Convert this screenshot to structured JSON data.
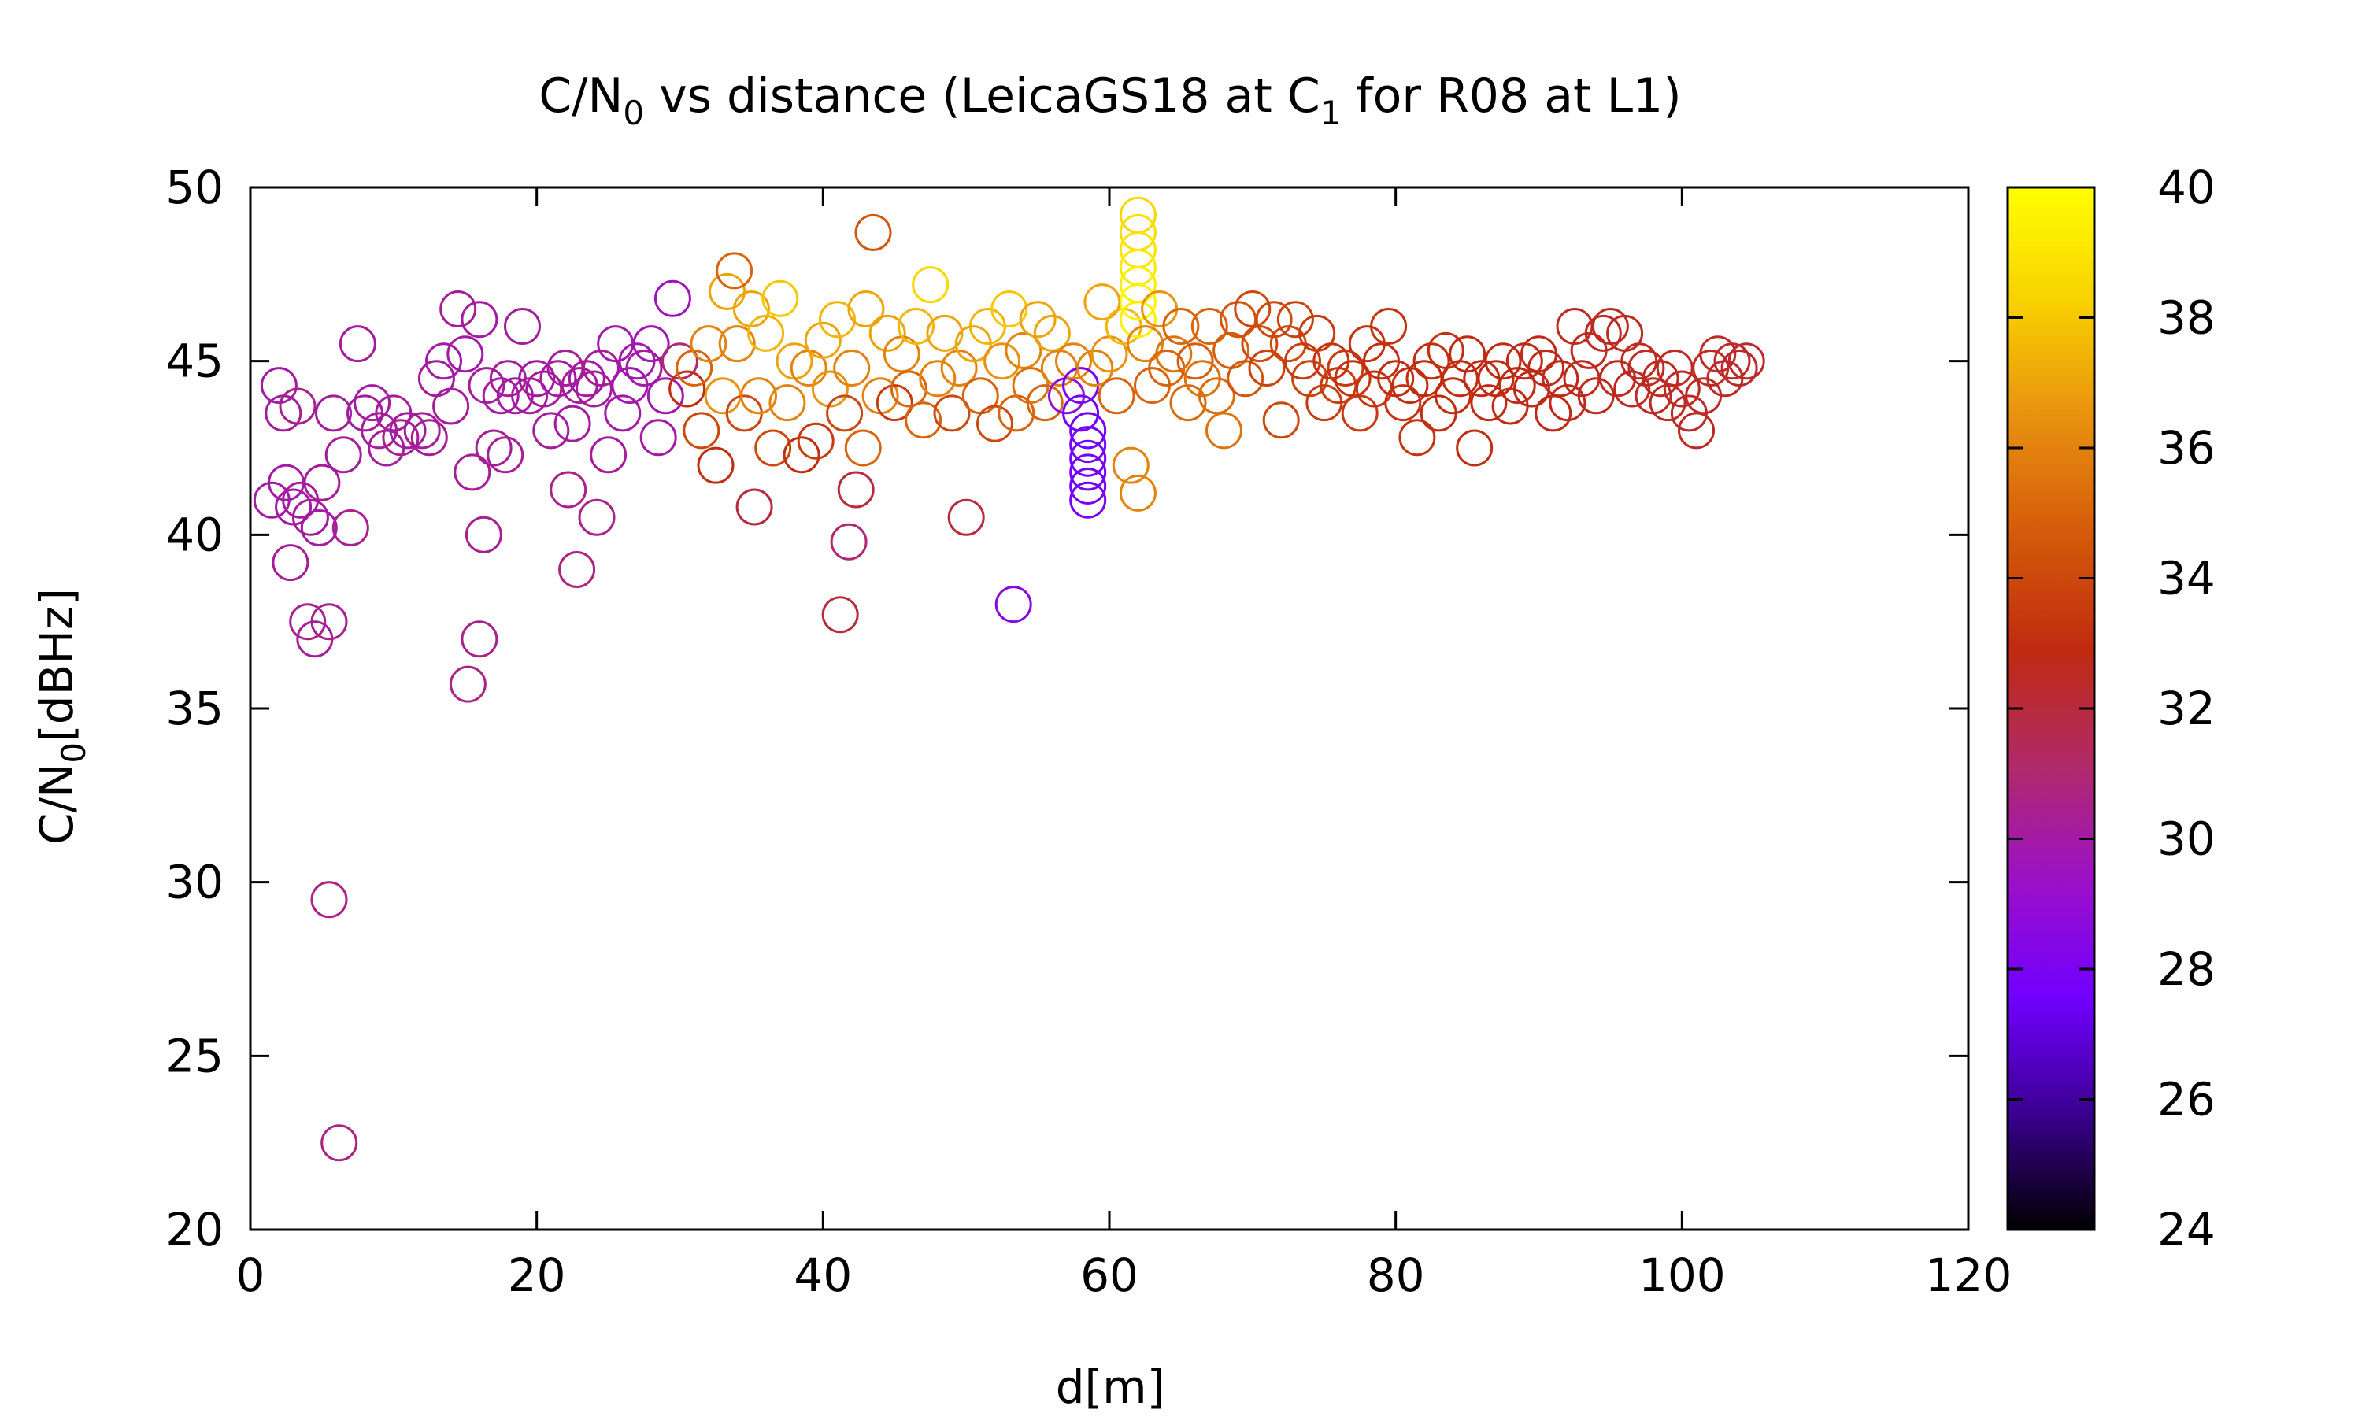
{
  "chart_data": {
    "type": "scatter",
    "title": {
      "main": "C/N",
      "sub0": "0",
      "mid": " vs distance (LeicaGS18 at C",
      "sub1": "1",
      "tail": " for R08 at L1)"
    },
    "xlabel": "d[m]",
    "ylabel": {
      "main": "C/N",
      "sub": "0",
      "tail": "[dBHz]"
    },
    "xlim": [
      0,
      120
    ],
    "ylim": [
      20,
      50
    ],
    "xticks": [
      0,
      20,
      40,
      60,
      80,
      100,
      120
    ],
    "yticks": [
      20,
      25,
      30,
      35,
      40,
      45,
      50
    ],
    "colorbar": {
      "range": [
        24,
        40
      ],
      "ticks": [
        24,
        26,
        28,
        30,
        32,
        34,
        36,
        38,
        40
      ],
      "palette": [
        "#000000",
        "#3a0090",
        "#7000ff",
        "#9b10c8",
        "#b02a6a",
        "#c02a10",
        "#d45a0a",
        "#e89010",
        "#f8d000",
        "#ffff00"
      ]
    },
    "grid": false,
    "legend": "none",
    "points": [
      [
        1.5,
        41,
        30
      ],
      [
        2,
        44.3,
        30
      ],
      [
        2.3,
        43.5,
        30.2
      ],
      [
        2.5,
        41.5,
        30
      ],
      [
        2.8,
        39.2,
        30.3
      ],
      [
        3,
        40.8,
        30
      ],
      [
        3.3,
        43.7,
        30.5
      ],
      [
        3.5,
        41,
        30.2
      ],
      [
        4,
        37.5,
        30.4
      ],
      [
        4.2,
        40.5,
        30.1
      ],
      [
        4.5,
        37,
        30.3
      ],
      [
        4.8,
        40.2,
        30
      ],
      [
        5,
        41.5,
        30.3
      ],
      [
        5.5,
        37.5,
        30.4
      ],
      [
        5.5,
        29.5,
        30.6
      ],
      [
        5.8,
        43.5,
        30.2
      ],
      [
        6.2,
        22.5,
        30.7
      ],
      [
        6.5,
        42.3,
        30.2
      ],
      [
        7,
        40.2,
        30.4
      ],
      [
        7.5,
        45.5,
        30.2
      ],
      [
        8,
        43.5,
        30.1
      ],
      [
        8.5,
        43.8,
        30
      ],
      [
        9,
        43,
        30.3
      ],
      [
        9.5,
        42.5,
        30.1
      ],
      [
        10,
        43.5,
        30.2
      ],
      [
        10.5,
        42.8,
        30.4
      ],
      [
        11,
        43,
        30
      ],
      [
        12,
        43,
        30.2
      ],
      [
        12.5,
        42.8,
        30.3
      ],
      [
        13,
        44.5,
        30.1
      ],
      [
        13.5,
        45,
        30
      ],
      [
        14,
        43.7,
        30.2
      ],
      [
        14.5,
        46.5,
        30.3
      ],
      [
        15,
        45.2,
        30
      ],
      [
        15.2,
        35.7,
        30.6
      ],
      [
        15.5,
        41.8,
        30.2
      ],
      [
        16,
        46.2,
        30.1
      ],
      [
        16,
        37,
        30.5
      ],
      [
        16.3,
        40,
        30.4
      ],
      [
        16.5,
        44.3,
        30.2
      ],
      [
        17,
        42.5,
        30.3
      ],
      [
        17.5,
        44,
        30
      ],
      [
        17.8,
        42.3,
        30.3
      ],
      [
        18,
        44.5,
        30.2
      ],
      [
        18.5,
        44,
        30
      ],
      [
        19,
        46,
        30.2
      ],
      [
        19.5,
        44,
        30.1
      ],
      [
        20,
        44.5,
        30
      ],
      [
        20.5,
        44.2,
        30.3
      ],
      [
        21,
        43,
        30.2
      ],
      [
        21.5,
        44.5,
        30
      ],
      [
        22,
        44.8,
        30.2
      ],
      [
        22.2,
        41.3,
        30.5
      ],
      [
        22.5,
        43.2,
        30.1
      ],
      [
        22.8,
        39,
        30.6
      ],
      [
        23,
        44.3,
        30.2
      ],
      [
        23.5,
        44.5,
        30
      ],
      [
        24,
        44.2,
        30.2
      ],
      [
        24.2,
        40.5,
        30.5
      ],
      [
        24.5,
        44.8,
        30.3
      ],
      [
        25,
        42.3,
        30.2
      ],
      [
        25.5,
        45.5,
        29.8
      ],
      [
        26,
        43.5,
        30
      ],
      [
        26.5,
        44.3,
        29.8
      ],
      [
        27,
        45,
        29.8
      ],
      [
        27.5,
        44.8,
        30
      ],
      [
        28,
        45.5,
        29.7
      ],
      [
        28.5,
        42.8,
        30
      ],
      [
        29,
        44,
        29.9
      ],
      [
        29.5,
        46.8,
        29.6
      ],
      [
        30,
        45,
        31
      ],
      [
        30.5,
        44.2,
        33
      ],
      [
        31,
        44.8,
        35
      ],
      [
        31.5,
        43,
        34
      ],
      [
        32,
        45.5,
        36
      ],
      [
        32.5,
        42,
        33
      ],
      [
        33,
        44,
        36.5
      ],
      [
        33.3,
        47,
        37
      ],
      [
        33.8,
        47.6,
        35
      ],
      [
        34,
        45.5,
        36
      ],
      [
        34.5,
        43.5,
        34
      ],
      [
        35,
        46.5,
        37
      ],
      [
        35.2,
        40.8,
        32
      ],
      [
        35.5,
        44,
        36
      ],
      [
        36,
        45.8,
        37.5
      ],
      [
        36.5,
        42.5,
        34
      ],
      [
        37,
        46.8,
        38
      ],
      [
        37.5,
        43.8,
        36
      ],
      [
        38,
        45,
        37
      ],
      [
        38.5,
        42.3,
        33
      ],
      [
        39,
        44.8,
        36
      ],
      [
        39.5,
        42.7,
        33.5
      ],
      [
        40,
        45.6,
        37
      ],
      [
        40.5,
        44.2,
        36.5
      ],
      [
        41,
        46.2,
        37.5
      ],
      [
        41.2,
        37.7,
        32
      ],
      [
        41.5,
        43.5,
        34
      ],
      [
        41.8,
        39.8,
        31
      ],
      [
        42,
        44.8,
        36
      ],
      [
        42.3,
        41.3,
        32
      ],
      [
        42.8,
        42.5,
        35
      ],
      [
        43,
        46.5,
        37
      ],
      [
        43.5,
        48.7,
        34.5
      ],
      [
        44,
        44,
        36
      ],
      [
        44.5,
        45.8,
        37
      ],
      [
        45,
        43.8,
        33.5
      ],
      [
        45.5,
        45.2,
        36
      ],
      [
        46,
        44.2,
        35
      ],
      [
        46.5,
        46,
        37.5
      ],
      [
        47,
        43.3,
        35
      ],
      [
        47.5,
        47.2,
        38.5
      ],
      [
        48,
        44.5,
        36
      ],
      [
        48.5,
        45.8,
        37
      ],
      [
        49,
        43.5,
        34
      ],
      [
        49.5,
        44.8,
        36
      ],
      [
        50,
        40.5,
        32
      ],
      [
        50.5,
        45.5,
        37
      ],
      [
        51,
        44,
        35
      ],
      [
        51.5,
        46,
        37.5
      ],
      [
        52,
        43.2,
        34
      ],
      [
        52.5,
        45,
        36.5
      ],
      [
        53,
        46.5,
        38
      ],
      [
        53.3,
        38,
        28.5
      ],
      [
        53.5,
        43.5,
        35
      ],
      [
        54,
        45.3,
        36
      ],
      [
        54.5,
        44.3,
        35.5
      ],
      [
        55,
        46.2,
        37
      ],
      [
        55.5,
        43.8,
        35
      ],
      [
        56,
        45.8,
        37
      ],
      [
        56.5,
        44.8,
        36
      ],
      [
        57,
        44,
        29
      ],
      [
        57.5,
        45,
        36
      ],
      [
        58,
        44.3,
        28
      ],
      [
        58,
        43.5,
        27.8
      ],
      [
        58.5,
        43,
        27.8
      ],
      [
        58.5,
        42.6,
        27.8
      ],
      [
        58.5,
        42.2,
        27.8
      ],
      [
        58.5,
        41.8,
        27.8
      ],
      [
        58.5,
        41.4,
        27.8
      ],
      [
        58.5,
        41,
        27.8
      ],
      [
        59,
        44.8,
        36
      ],
      [
        59.5,
        46.7,
        37
      ],
      [
        60,
        45.2,
        36.5
      ],
      [
        60.5,
        44,
        35
      ],
      [
        61,
        46,
        37.5
      ],
      [
        61.5,
        42,
        36
      ],
      [
        62,
        49.2,
        38.5
      ],
      [
        62,
        48.7,
        38.8
      ],
      [
        62,
        48.2,
        39
      ],
      [
        62,
        47.7,
        39.2
      ],
      [
        62,
        47.2,
        39.4
      ],
      [
        62,
        46.7,
        39.6
      ],
      [
        62,
        46.2,
        39.4
      ],
      [
        62,
        41.2,
        36
      ],
      [
        62.5,
        45.5,
        36
      ],
      [
        63,
        44.3,
        35
      ],
      [
        63.5,
        46.5,
        36.5
      ],
      [
        64,
        44.8,
        35
      ],
      [
        64.5,
        45.2,
        35.5
      ],
      [
        65,
        46,
        35
      ],
      [
        65.5,
        43.8,
        35.2
      ],
      [
        66,
        45,
        34.8
      ],
      [
        66.5,
        44.5,
        35.5
      ],
      [
        67,
        46,
        35
      ],
      [
        67.5,
        44,
        35.3
      ],
      [
        68,
        43,
        35.5
      ],
      [
        68.5,
        45.3,
        34.8
      ],
      [
        69,
        46.2,
        34.5
      ],
      [
        69.5,
        44.5,
        34.5
      ],
      [
        70,
        46.5,
        34
      ],
      [
        70.5,
        45.5,
        34.2
      ],
      [
        71,
        44.8,
        33.8
      ],
      [
        71.5,
        46.2,
        34
      ],
      [
        72,
        43.3,
        34
      ],
      [
        72.5,
        45.5,
        34
      ],
      [
        73,
        46.2,
        33.8
      ],
      [
        73.5,
        45,
        33.5
      ],
      [
        74,
        44.5,
        33.8
      ],
      [
        74.5,
        45.8,
        33.5
      ],
      [
        75,
        43.8,
        33.6
      ],
      [
        75.5,
        45,
        33.2
      ],
      [
        76,
        44.3,
        33.5
      ],
      [
        76.5,
        44.8,
        33.4
      ],
      [
        77,
        44.5,
        33.2
      ],
      [
        77.5,
        43.5,
        33.5
      ],
      [
        78,
        45.5,
        33.2
      ],
      [
        78.5,
        44.2,
        33.3
      ],
      [
        79,
        45,
        33
      ],
      [
        79.5,
        46,
        33.2
      ],
      [
        80,
        44.5,
        33
      ],
      [
        80.5,
        43.8,
        33.2
      ],
      [
        81,
        44.3,
        33
      ],
      [
        81.5,
        42.8,
        33.3
      ],
      [
        82,
        44.5,
        33
      ],
      [
        82.5,
        45,
        33
      ],
      [
        83,
        43.5,
        33
      ],
      [
        83.5,
        45.3,
        33.1
      ],
      [
        84,
        44,
        32.9
      ],
      [
        84.5,
        44.5,
        33
      ],
      [
        85,
        45.2,
        32.9
      ],
      [
        85.5,
        42.5,
        33
      ],
      [
        86,
        44.5,
        32.8
      ],
      [
        86.5,
        43.8,
        32.9
      ],
      [
        87,
        44.5,
        32.8
      ],
      [
        87.5,
        45,
        32.9
      ],
      [
        88,
        43.7,
        32.8
      ],
      [
        88.5,
        44.3,
        32.8
      ],
      [
        89,
        45,
        32.8
      ],
      [
        89.5,
        44.2,
        32.7
      ],
      [
        90,
        45.2,
        32.8
      ],
      [
        90.5,
        44.8,
        32.7
      ],
      [
        91,
        43.5,
        32.8
      ],
      [
        91.5,
        44.5,
        32.7
      ],
      [
        92,
        43.8,
        32.7
      ],
      [
        92.5,
        46,
        32.6
      ],
      [
        93,
        44.5,
        32.7
      ],
      [
        93.5,
        45.3,
        32.6
      ],
      [
        94,
        44,
        32.7
      ],
      [
        94.5,
        45.8,
        32.6
      ],
      [
        95,
        46,
        32.6
      ],
      [
        95.5,
        44.5,
        32.6
      ],
      [
        96,
        45.8,
        32.6
      ],
      [
        96.5,
        44.2,
        32.5
      ],
      [
        97,
        45,
        32.6
      ],
      [
        97.5,
        44.8,
        32.5
      ],
      [
        98,
        44,
        32.5
      ],
      [
        98.5,
        44.5,
        32.6
      ],
      [
        99,
        43.8,
        32.5
      ],
      [
        99.5,
        44.8,
        32.5
      ],
      [
        100,
        44.2,
        32.5
      ],
      [
        100.5,
        43.5,
        32.4
      ],
      [
        101,
        43,
        32.5
      ],
      [
        101.5,
        44,
        32.4
      ],
      [
        102,
        44.8,
        32.5
      ],
      [
        102.5,
        45.2,
        32.4
      ],
      [
        103,
        44.5,
        32.4
      ],
      [
        103.5,
        45,
        32.4
      ],
      [
        104,
        44.8,
        32.4
      ],
      [
        104.5,
        45,
        32.3
      ]
    ]
  }
}
